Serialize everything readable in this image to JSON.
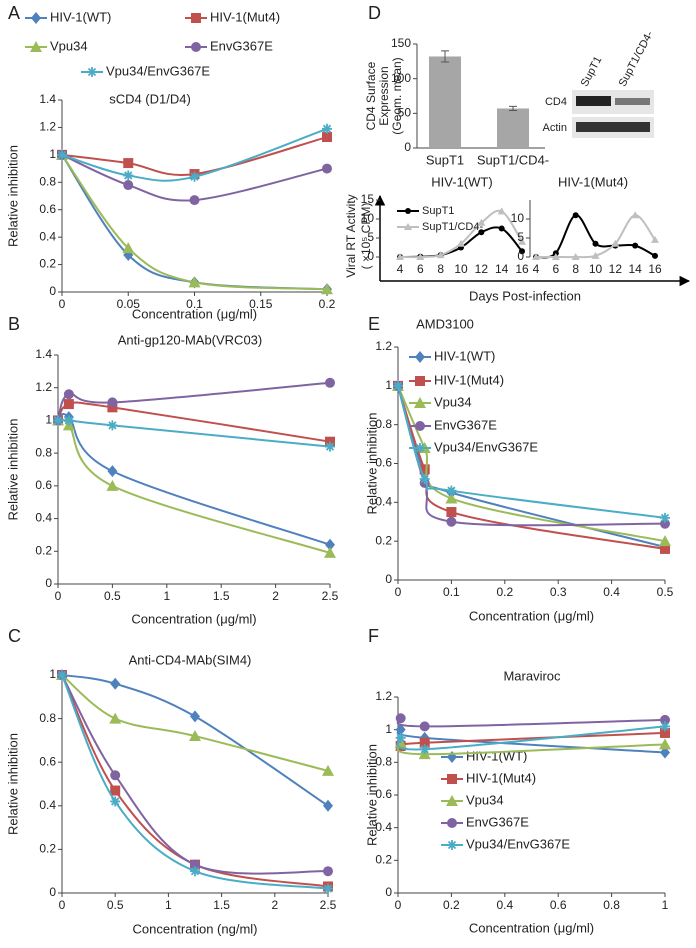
{
  "chart_data": [
    {
      "type": "line",
      "panel": "A",
      "title": "sCD4 (D1/D4)",
      "x_label": "Concentration (μg/ml)",
      "y_label": "Relative inhibition",
      "x": [
        0,
        0.05,
        0.1,
        0.2
      ],
      "xlim": [
        0,
        0.2
      ],
      "xticks": [
        0,
        0.05,
        0.1,
        0.15,
        0.2
      ],
      "ylim": [
        0,
        1.4
      ],
      "yticks": [
        0,
        0.2,
        0.4,
        0.6,
        0.8,
        1,
        1.2,
        1.4
      ],
      "legend": "top",
      "series": [
        {
          "name": "HIV-1(WT)",
          "color": "#4f81bd",
          "marker": "diamond",
          "values": [
            1,
            0.27,
            0.07,
            0.02
          ]
        },
        {
          "name": "HIV-1(Mut4)",
          "color": "#c0504d",
          "marker": "square",
          "values": [
            1,
            0.94,
            0.86,
            1.13
          ]
        },
        {
          "name": "Vpu34",
          "color": "#9bbb59",
          "marker": "triangle",
          "values": [
            1,
            0.32,
            0.07,
            0.02
          ]
        },
        {
          "name": "EnvG367E",
          "color": "#8064a2",
          "marker": "circle",
          "values": [
            1,
            0.78,
            0.67,
            0.9
          ]
        },
        {
          "name": "Vpu34/EnvG367E",
          "color": "#4bacc6",
          "marker": "star",
          "values": [
            1,
            0.85,
            0.84,
            1.19
          ]
        }
      ]
    },
    {
      "type": "bar",
      "panel": "D",
      "y_label": [
        "CD4 Surface",
        "Expression",
        "(Geom. mean)"
      ],
      "categories": [
        "SupT1",
        "SupT1/CD4-"
      ],
      "values": [
        132,
        57
      ],
      "errors": [
        8,
        3
      ],
      "color": "#a6a6a6",
      "ylim": [
        0,
        150
      ],
      "yticks": [
        0,
        50,
        100,
        150
      ],
      "blot": {
        "lanes": [
          "SupT1",
          "SupT1/CD4-"
        ],
        "bands": [
          "CD4",
          "Actin"
        ]
      }
    },
    {
      "type": "line",
      "title": "HIV-1(WT)",
      "y_label": [
        "Viral RT Activity",
        "( ×10⁵ CPM)"
      ],
      "x_label": "Days Post-infection",
      "x": [
        4,
        6,
        8,
        10,
        12,
        14,
        16
      ],
      "xlim": [
        4,
        16
      ],
      "xticks": [
        4,
        6,
        8,
        10,
        12,
        14,
        16
      ],
      "ylim": [
        0,
        15
      ],
      "yticks": [
        0,
        5,
        10,
        15
      ],
      "legend": "upper left",
      "series": [
        {
          "name": "SupT1",
          "color": "#000000",
          "marker": "circle",
          "values": [
            0,
            0.1,
            0.5,
            2.5,
            6.5,
            7.5,
            1.5
          ]
        },
        {
          "name": "SupT1/CD4-",
          "color": "#bfbfbf",
          "marker": "triangle",
          "values": [
            0,
            0,
            0.5,
            3.5,
            9,
            12,
            4
          ]
        }
      ]
    },
    {
      "type": "line",
      "title": "HIV-1(Mut4)",
      "x": [
        4,
        6,
        8,
        10,
        12,
        14,
        16
      ],
      "xlim": [
        4,
        16
      ],
      "xticks": [
        4,
        6,
        8,
        10,
        12,
        14,
        16
      ],
      "ylim": [
        0,
        15
      ],
      "yticks": [
        0,
        5,
        10
      ],
      "series": [
        {
          "color": "#000000",
          "marker": "circle",
          "values": [
            0,
            1,
            11,
            3.5,
            3,
            3,
            0.3
          ]
        },
        {
          "color": "#bfbfbf",
          "marker": "triangle",
          "values": [
            0,
            0,
            0,
            0.3,
            3.5,
            11,
            4.5
          ]
        }
      ]
    },
    {
      "type": "line",
      "panel": "B",
      "title": "Anti-gp120-MAb(VRC03)",
      "x_label": "Concentration (μg/ml)",
      "y_label": "Relative inhibition",
      "x": [
        0,
        0.1,
        0.5,
        2.5
      ],
      "xlim": [
        0,
        2.5
      ],
      "xticks": [
        0,
        0.5,
        1,
        1.5,
        2,
        2.5
      ],
      "ylim": [
        0,
        1.4
      ],
      "yticks": [
        0,
        0.2,
        0.4,
        0.6,
        0.8,
        1,
        1.2,
        1.4
      ],
      "series": [
        {
          "color": "#4f81bd",
          "marker": "diamond",
          "values": [
            1,
            1.02,
            0.69,
            0.24
          ]
        },
        {
          "color": "#c0504d",
          "marker": "square",
          "values": [
            1,
            1.1,
            1.08,
            0.87
          ]
        },
        {
          "color": "#9bbb59",
          "marker": "triangle",
          "values": [
            1,
            0.97,
            0.6,
            0.19
          ]
        },
        {
          "color": "#8064a2",
          "marker": "circle",
          "values": [
            1,
            1.16,
            1.11,
            1.23
          ]
        },
        {
          "color": "#4bacc6",
          "marker": "star",
          "values": [
            1,
            1,
            0.97,
            0.84
          ]
        }
      ]
    },
    {
      "type": "line",
      "panel": "C",
      "title": "Anti-CD4-MAb(SIM4)",
      "x_label": "Concentration (ng/ml)",
      "y_label": "Relative inhibition",
      "x": [
        0,
        0.5,
        1.25,
        2.5
      ],
      "xlim": [
        0,
        2.5
      ],
      "xticks": [
        0,
        0.5,
        1,
        1.5,
        2,
        2.5
      ],
      "ylim": [
        0,
        1
      ],
      "yticks": [
        0,
        0.2,
        0.4,
        0.6,
        0.8,
        1
      ],
      "series": [
        {
          "color": "#4f81bd",
          "marker": "diamond",
          "values": [
            1,
            0.96,
            0.81,
            0.4
          ]
        },
        {
          "color": "#c0504d",
          "marker": "square",
          "values": [
            1,
            0.47,
            0.13,
            0.03
          ]
        },
        {
          "color": "#9bbb59",
          "marker": "triangle",
          "values": [
            1,
            0.8,
            0.72,
            0.56
          ]
        },
        {
          "color": "#8064a2",
          "marker": "circle",
          "values": [
            1,
            0.54,
            0.13,
            0.1
          ]
        },
        {
          "color": "#4bacc6",
          "marker": "star",
          "values": [
            1,
            0.42,
            0.1,
            0.02
          ]
        }
      ]
    },
    {
      "type": "line",
      "panel": "E",
      "title": "AMD3100",
      "x_label": "Concentration (μg/ml)",
      "y_label": "Relative inhibition",
      "x": [
        0,
        0.05,
        0.1,
        0.5
      ],
      "xlim": [
        0,
        0.5
      ],
      "xticks": [
        0,
        0.1,
        0.2,
        0.3,
        0.4,
        0.5
      ],
      "ylim": [
        0,
        1.2
      ],
      "yticks": [
        0,
        0.2,
        0.4,
        0.6,
        0.8,
        1,
        1.2
      ],
      "legend": "upper right",
      "series": [
        {
          "name": "HIV-1(WT)",
          "color": "#4f81bd",
          "marker": "diamond",
          "values": [
            1,
            0.55,
            0.45,
            0.17
          ]
        },
        {
          "name": "HIV-1(Mut4)",
          "color": "#c0504d",
          "marker": "square",
          "values": [
            1,
            0.57,
            0.35,
            0.16
          ]
        },
        {
          "name": "Vpu34",
          "color": "#9bbb59",
          "marker": "triangle",
          "values": [
            1,
            0.68,
            0.42,
            0.2
          ]
        },
        {
          "name": "EnvG367E",
          "color": "#8064a2",
          "marker": "circle",
          "values": [
            1,
            0.5,
            0.3,
            0.29
          ]
        },
        {
          "name": "Vpu34/EnvG367E",
          "color": "#4bacc6",
          "marker": "star",
          "values": [
            1,
            0.52,
            0.46,
            0.32
          ]
        }
      ]
    },
    {
      "type": "line",
      "panel": "F",
      "title": "Maraviroc",
      "x_label": "Concentration (μg/ml)",
      "y_label": "Relative inhibition",
      "x": [
        0.01,
        0.1,
        1
      ],
      "xlim": [
        0,
        1
      ],
      "xticks": [
        0,
        0.2,
        0.4,
        0.6,
        0.8,
        1
      ],
      "ylim": [
        0,
        1.2
      ],
      "yticks": [
        0,
        0.2,
        0.4,
        0.6,
        0.8,
        1,
        1.2
      ],
      "legend": "lower right",
      "series": [
        {
          "name": "HIV-1(WT)",
          "color": "#4f81bd",
          "marker": "diamond",
          "values": [
            1,
            0.95,
            0.86
          ]
        },
        {
          "name": "HIV-1(Mut4)",
          "color": "#c0504d",
          "marker": "square",
          "values": [
            0.9,
            0.92,
            0.98
          ]
        },
        {
          "name": "Vpu34",
          "color": "#9bbb59",
          "marker": "triangle",
          "values": [
            0.92,
            0.85,
            0.91
          ]
        },
        {
          "name": "EnvG367E",
          "color": "#8064a2",
          "marker": "circle",
          "values": [
            1.07,
            1.02,
            1.06
          ]
        },
        {
          "name": "Vpu34/EnvG367E",
          "color": "#4bacc6",
          "marker": "star",
          "values": [
            0.95,
            0.88,
            1.02
          ]
        }
      ]
    }
  ]
}
